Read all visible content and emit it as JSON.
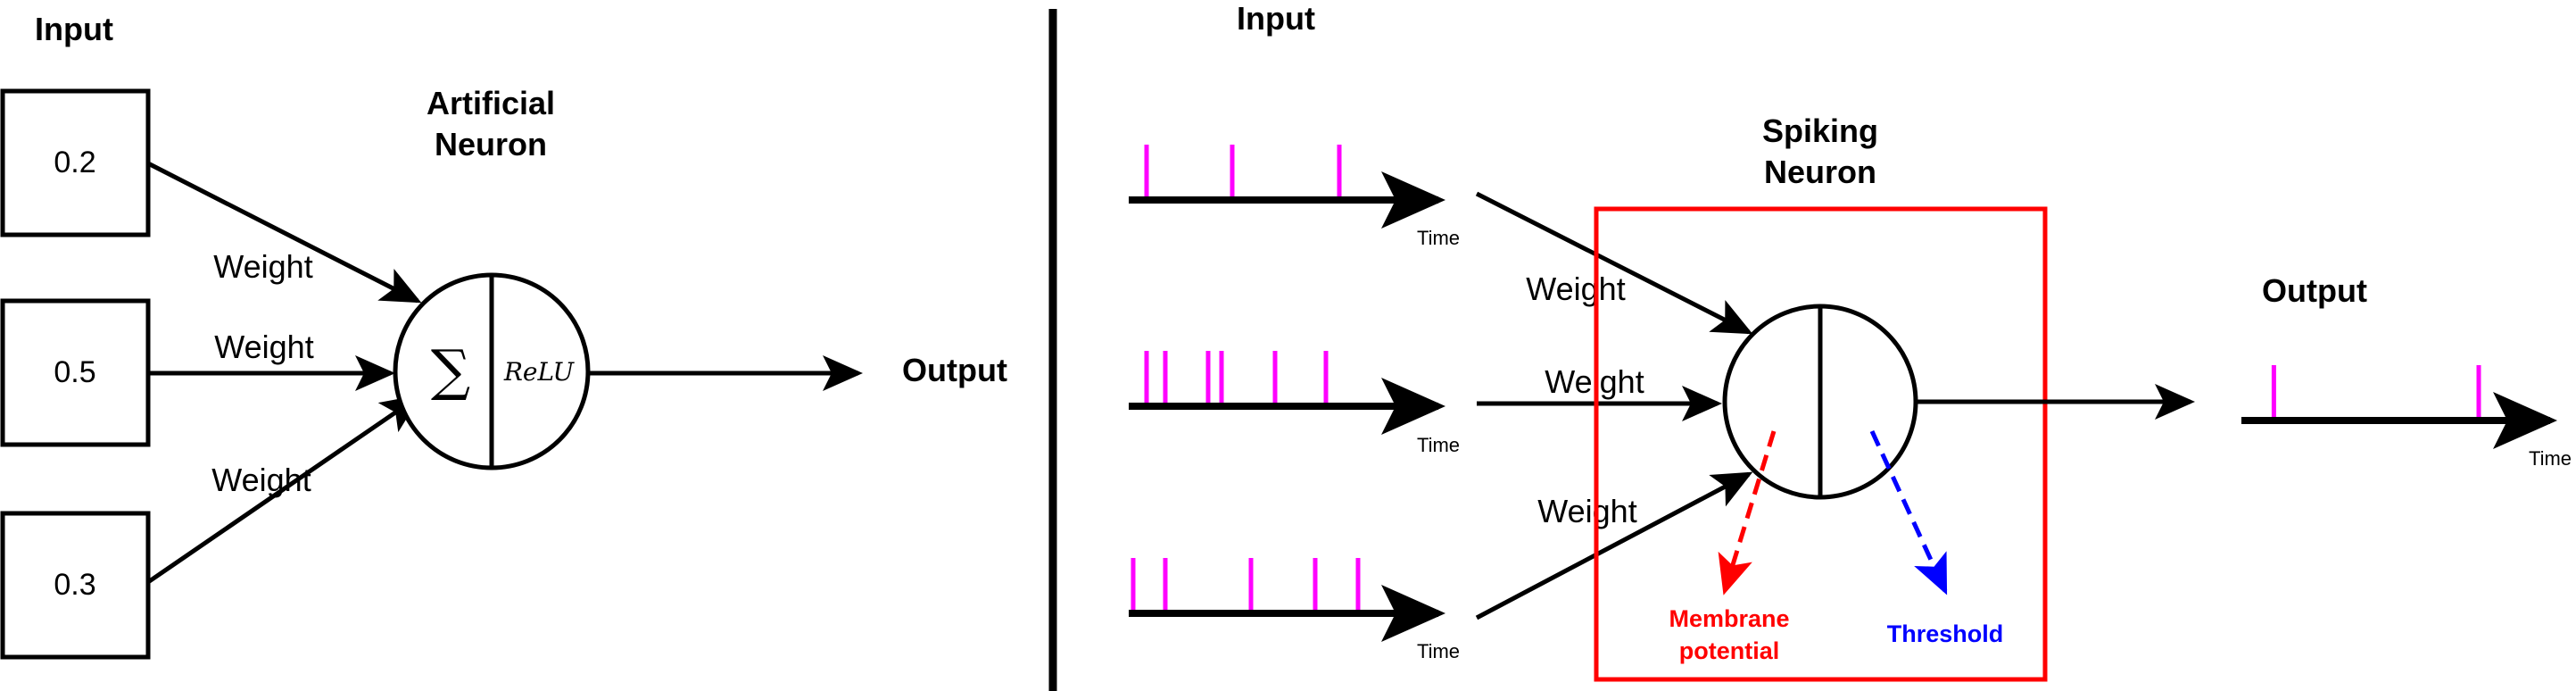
{
  "colors": {
    "stroke": "#000000",
    "spike": "#ff00ff",
    "box": "#ff0000",
    "membrane": "#ff0000",
    "threshold": "#0000ff"
  },
  "ann": {
    "input_title": "Input",
    "inputs": [
      "0.2",
      "0.5",
      "0.3"
    ],
    "weight_labels": [
      "Weight",
      "Weight",
      "Weight"
    ],
    "neuron_title_line1": "Artificial",
    "neuron_title_line2": "Neuron",
    "sum_symbol": "∑",
    "activation": "ReLU",
    "output_label": "Output"
  },
  "snn": {
    "input_title": "Input",
    "time_label": "Time",
    "weight_labels": [
      "Weight",
      "Weight",
      "Weight"
    ],
    "neuron_title_line1": "Spiking",
    "neuron_title_line2": "Neuron",
    "membrane_line1": "Membrane",
    "membrane_line2": "potential",
    "threshold": "Threshold",
    "output_label": "Output",
    "spike_trains": [
      [
        0.05,
        0.37,
        0.77
      ],
      [
        0.05,
        0.12,
        0.28,
        0.33,
        0.53,
        0.72
      ],
      [
        0.0,
        0.12,
        0.44,
        0.68,
        0.84
      ]
    ],
    "output_spikes": [
      0.13,
      0.95
    ]
  }
}
